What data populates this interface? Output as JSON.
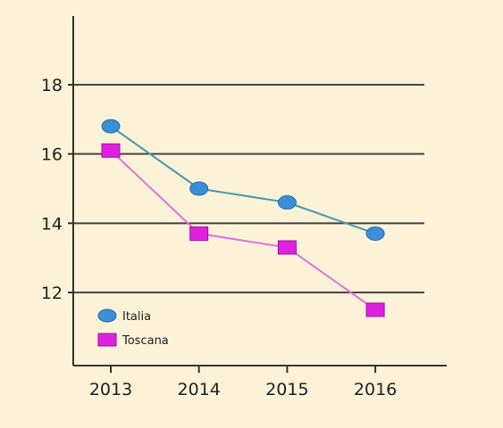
{
  "chart_data": {
    "type": "line",
    "title": "",
    "xlabel": "",
    "ylabel": "",
    "categories": [
      "2013",
      "2014",
      "2015",
      "2016"
    ],
    "y_ticks": [
      "12",
      "14",
      "16",
      "18"
    ],
    "ylim": [
      10,
      20
    ],
    "grid": "horizontal",
    "legend_position": "bottom-left",
    "series": [
      {
        "name": "Italia",
        "values": [
          16.8,
          15.0,
          14.6,
          13.7
        ],
        "color": "#3a8fd6",
        "line_color": "#4a9aa8",
        "marker": "circle"
      },
      {
        "name": "Toscana",
        "values": [
          16.1,
          13.7,
          13.3,
          11.5
        ],
        "color": "#e020e0",
        "line_color": "#e070e0",
        "marker": "square"
      }
    ]
  }
}
